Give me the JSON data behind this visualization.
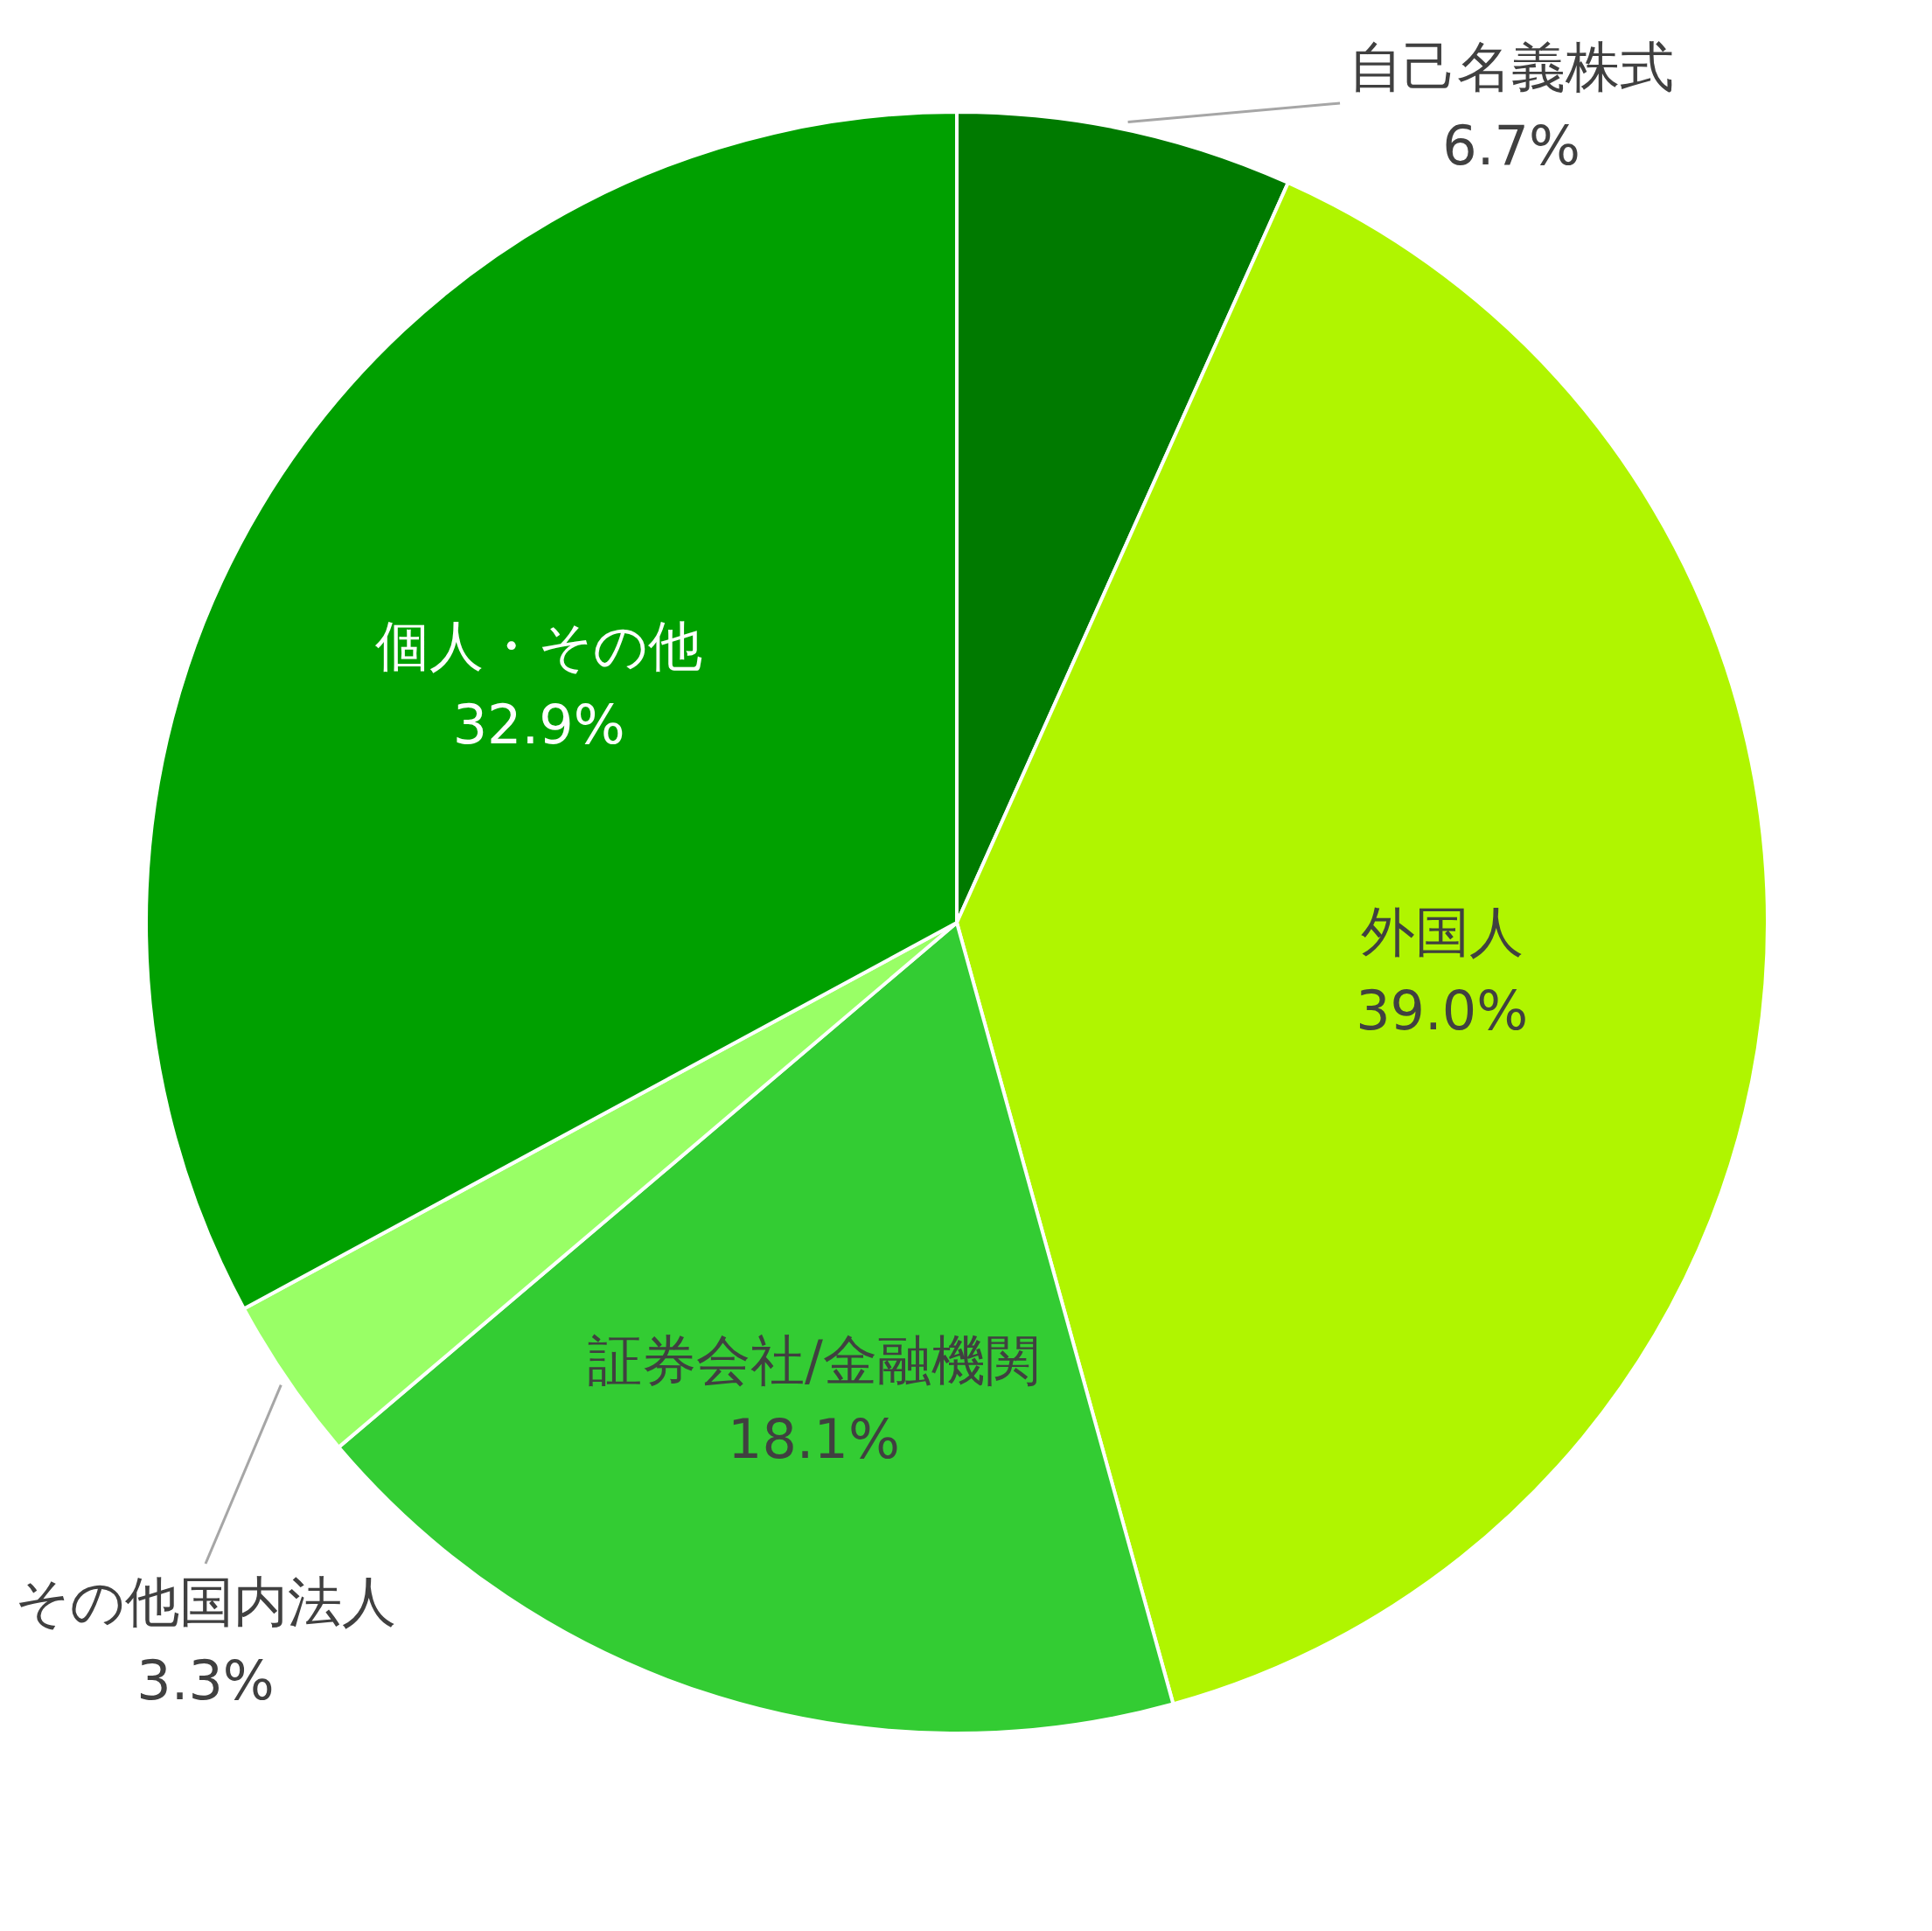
{
  "chart_data": {
    "type": "pie",
    "categories": [
      "自己名義株式",
      "外国人",
      "証券会社/金融機関",
      "その他国内法人",
      "個人・その他"
    ],
    "values": [
      6.7,
      39.0,
      18.1,
      3.3,
      32.9
    ],
    "value_labels": [
      "6.7%",
      "39.0%",
      "18.1%",
      "3.3%",
      "32.9%"
    ],
    "colors": [
      "#007a00",
      "#b0f500",
      "#33cc33",
      "#99ff66",
      "#00a000"
    ],
    "legend": false
  }
}
